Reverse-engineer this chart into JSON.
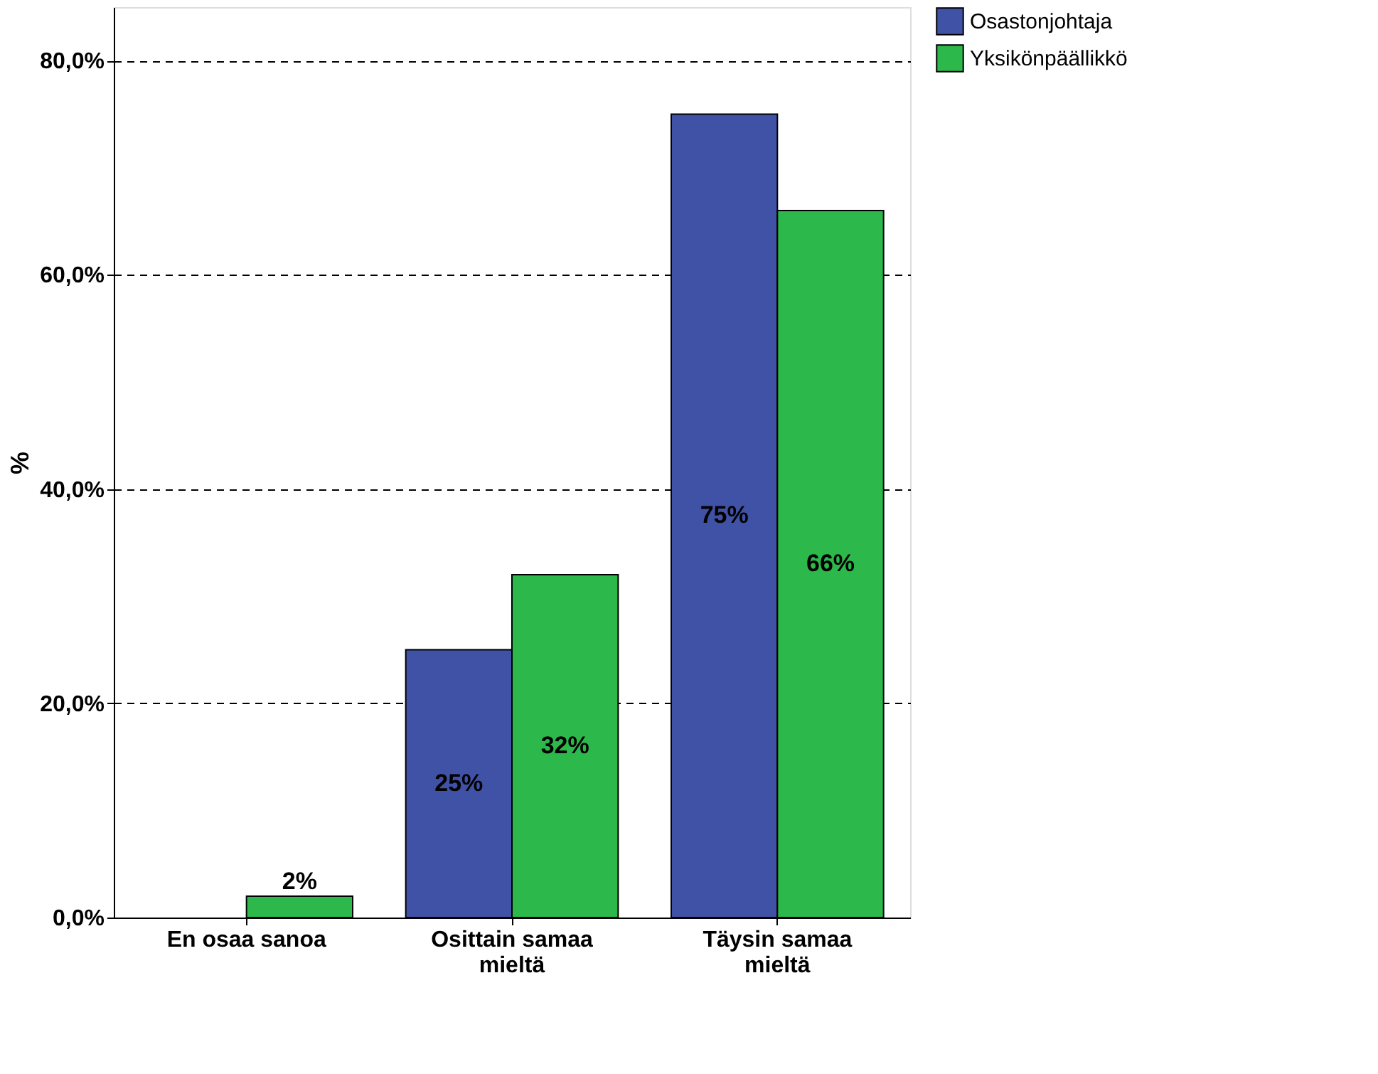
{
  "chart_data": {
    "type": "bar",
    "categories": [
      "En osaa sanoa",
      "Osittain samaa mieltä",
      "Täysin samaa mieltä"
    ],
    "ylabel": "%",
    "series": [
      {
        "name": "Osastonjohtaja",
        "color": "#3f52a6",
        "values": [
          0,
          25,
          75
        ],
        "value_labels": [
          null,
          "25%",
          "75%"
        ]
      },
      {
        "name": "Yksikönpäällikkö",
        "color": "#2cb84a",
        "values": [
          2,
          32,
          66
        ],
        "value_labels": [
          "2%",
          "32%",
          "66%"
        ]
      }
    ],
    "ylim": [
      0,
      85
    ],
    "yticks": [
      {
        "value": 0,
        "label": "0,0%"
      },
      {
        "value": 20,
        "label": "20,0%"
      },
      {
        "value": 40,
        "label": "40,0%"
      },
      {
        "value": 60,
        "label": "60,0%"
      },
      {
        "value": 80,
        "label": "80,0%"
      }
    ],
    "grid": "y",
    "legend": "top right"
  }
}
